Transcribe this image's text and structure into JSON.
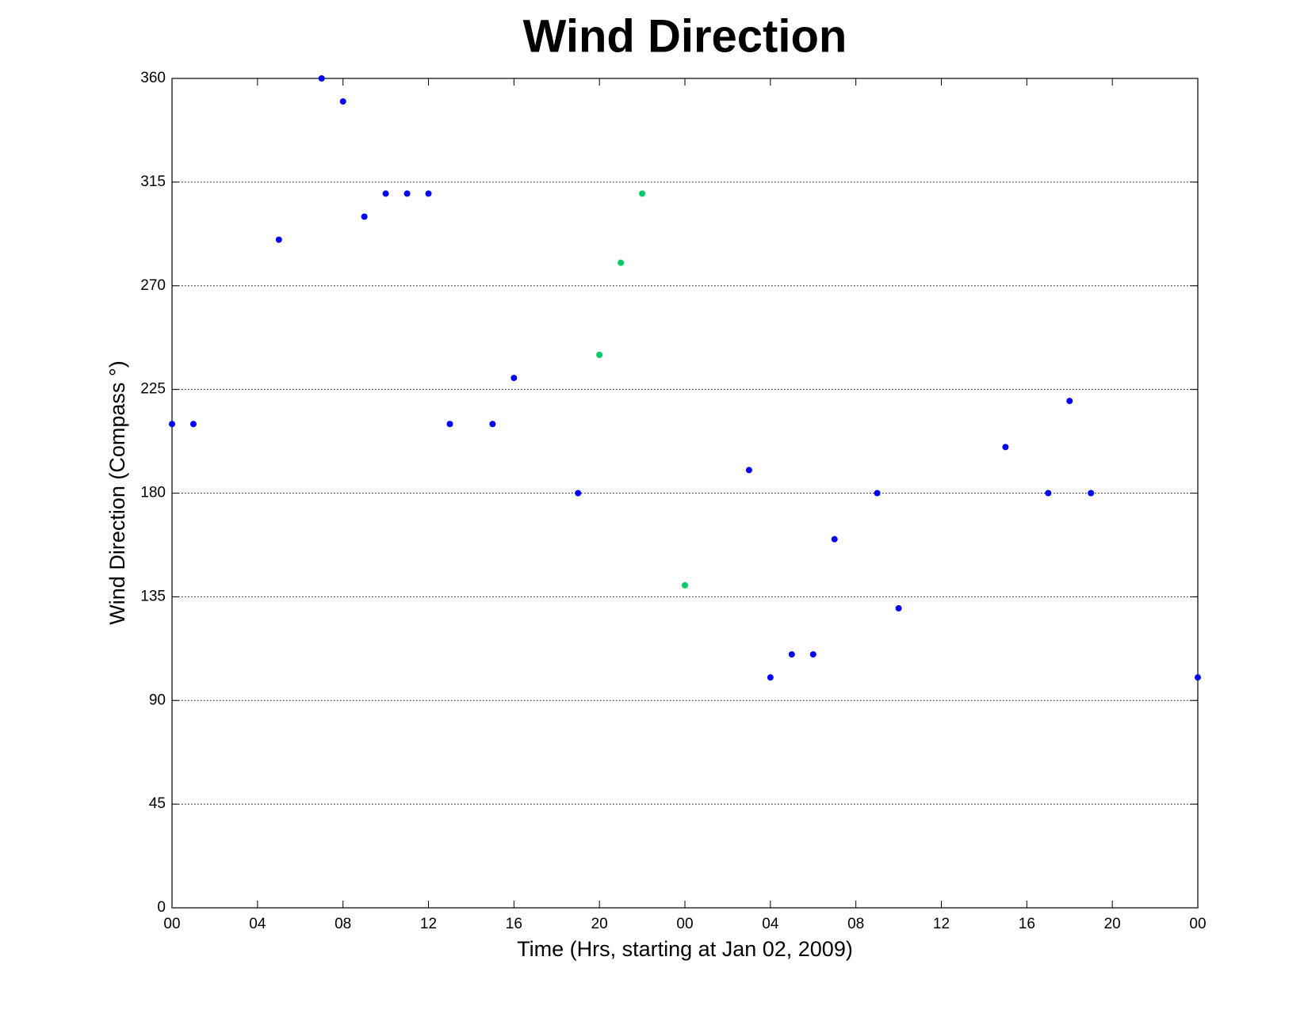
{
  "chart_data": {
    "type": "scatter",
    "title": "Wind Direction",
    "xlabel": "Time (Hrs, starting at Jan 02, 2009)",
    "ylabel": "Wind Direction (Compass °)",
    "series": [
      {
        "color": "#0000ff",
        "x": [
          0,
          1,
          5,
          7,
          8,
          9,
          10,
          11,
          12,
          13,
          15,
          16,
          19,
          27,
          28,
          29,
          30,
          31,
          33,
          34,
          39,
          41,
          42,
          43,
          48
        ],
        "values": [
          210,
          210,
          290,
          360,
          350,
          300,
          310,
          310,
          310,
          210,
          210,
          230,
          180,
          190,
          100,
          110,
          110,
          160,
          180,
          130,
          200,
          180,
          220,
          180,
          100
        ]
      },
      {
        "color": "#00cc66",
        "x": [
          20,
          21,
          22,
          24
        ],
        "values": [
          240,
          280,
          310,
          140
        ]
      }
    ],
    "xlim": [
      0,
      48
    ],
    "xticks": [
      {
        "value": 0,
        "label": "00"
      },
      {
        "value": 4,
        "label": "04"
      },
      {
        "value": 8,
        "label": "08"
      },
      {
        "value": 12,
        "label": "12"
      },
      {
        "value": 16,
        "label": "16"
      },
      {
        "value": 20,
        "label": "20"
      },
      {
        "value": 24,
        "label": "00"
      },
      {
        "value": 28,
        "label": "04"
      },
      {
        "value": 32,
        "label": "08"
      },
      {
        "value": 36,
        "label": "12"
      },
      {
        "value": 40,
        "label": "16"
      },
      {
        "value": 44,
        "label": "20"
      },
      {
        "value": 48,
        "label": "00"
      }
    ],
    "ylim": [
      0,
      360
    ],
    "yticks": [
      0,
      45,
      90,
      135,
      180,
      225,
      270,
      315,
      360
    ],
    "ygrid": true
  }
}
